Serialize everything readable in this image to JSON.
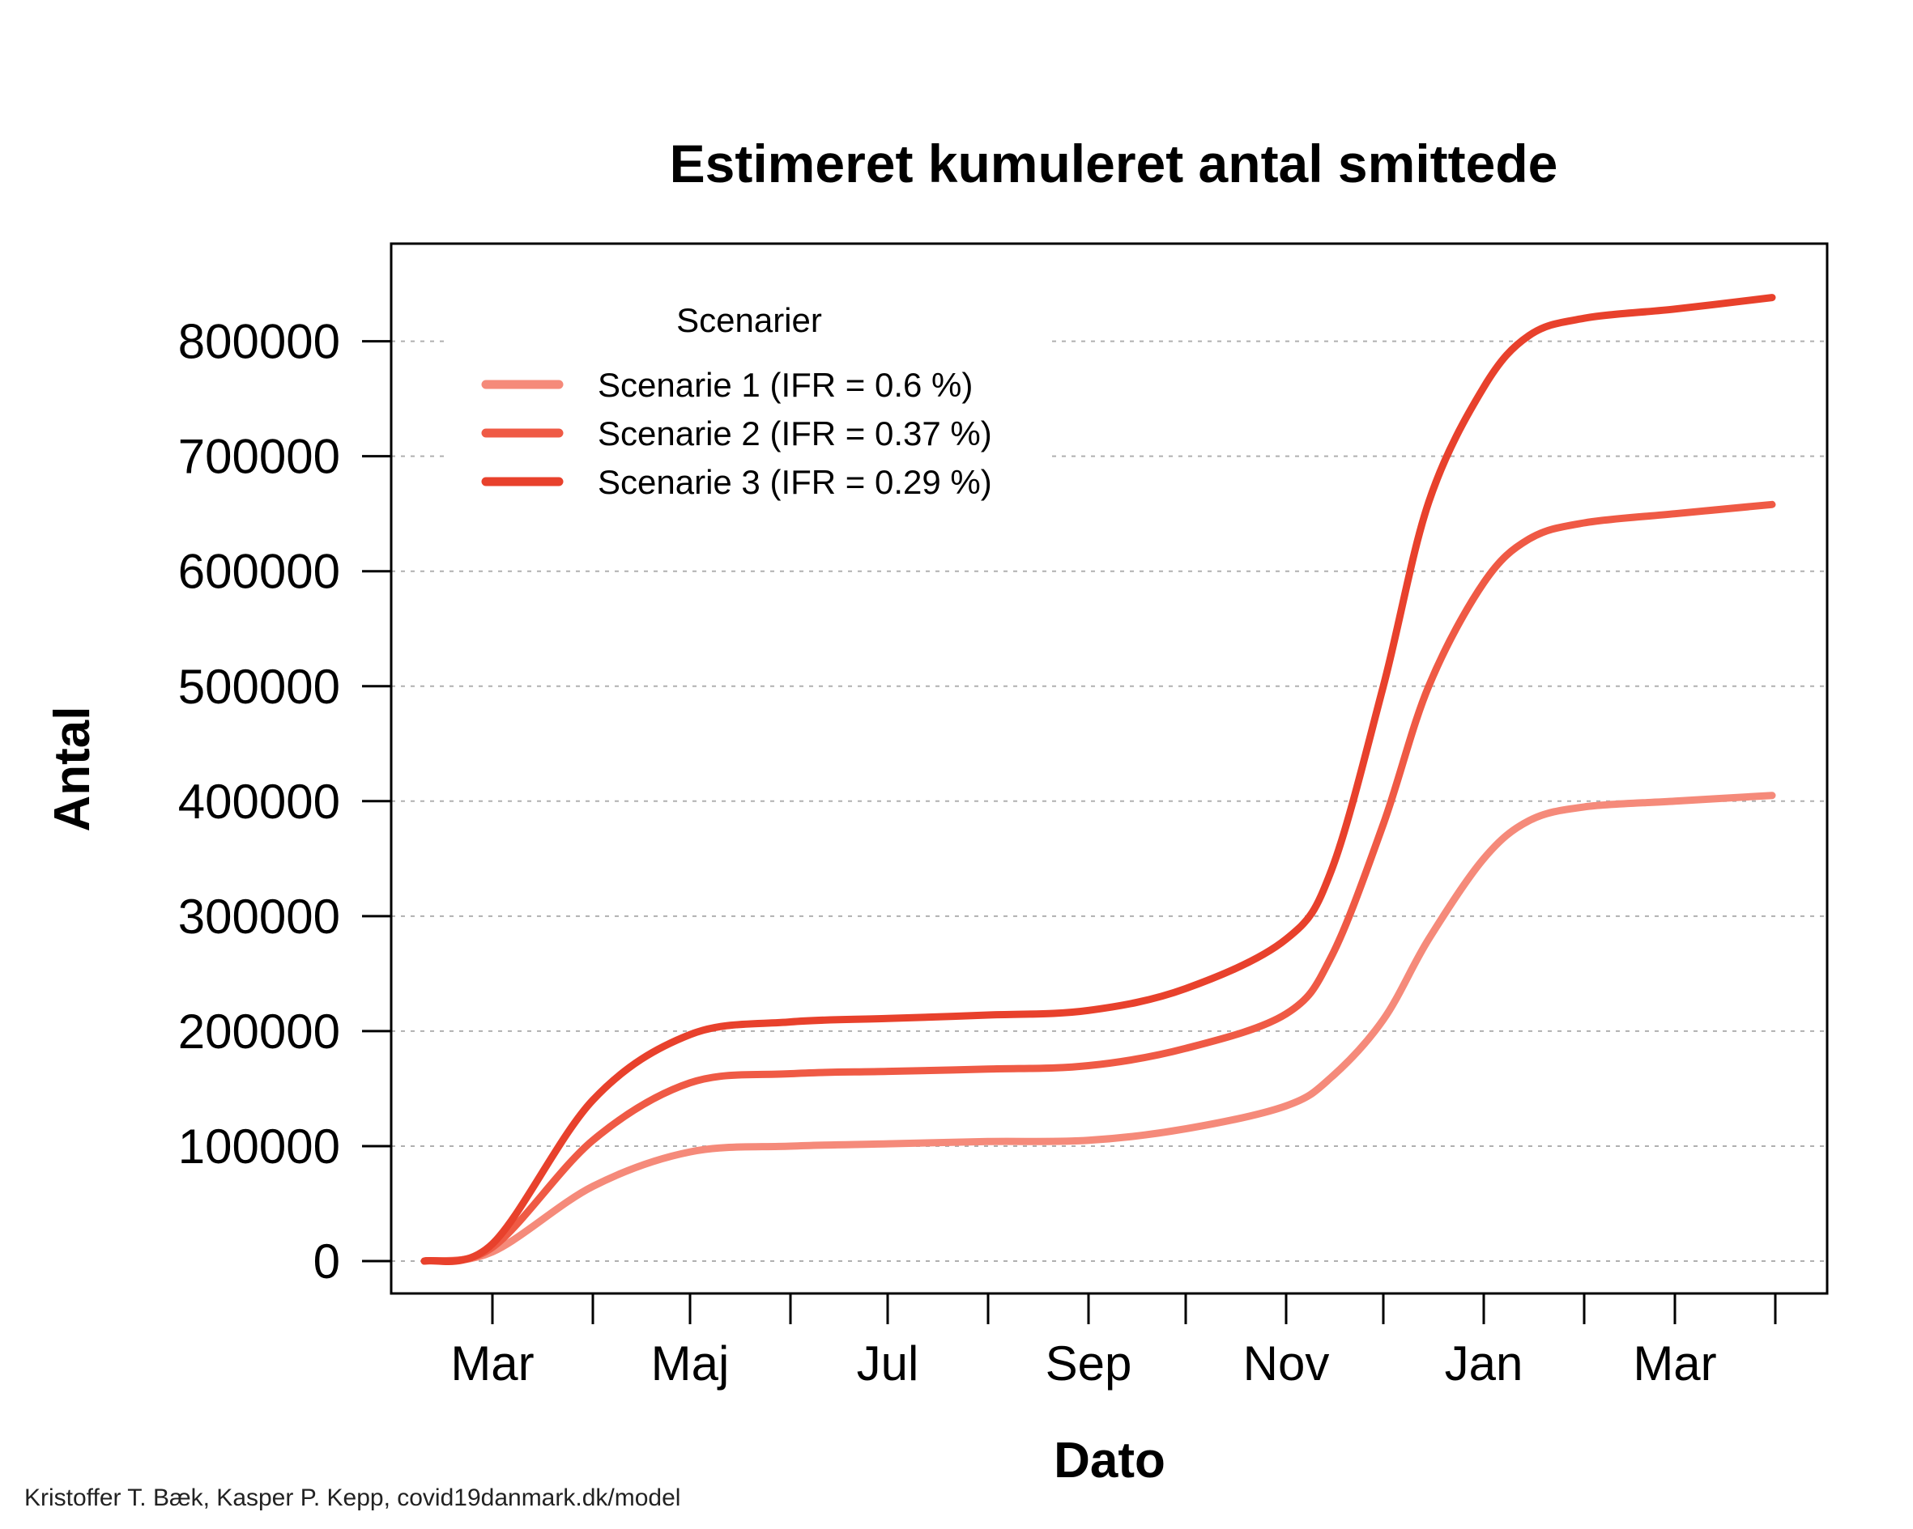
{
  "chart_data": {
    "type": "line",
    "title": "Estimeret kumuleret antal smittede",
    "xlabel": "Dato",
    "ylabel": "Antal",
    "x_ticks": [
      "Mar",
      "Maj",
      "Jul",
      "Sep",
      "Nov",
      "Jan",
      "Mar"
    ],
    "y_ticks": [
      0,
      100000,
      200000,
      300000,
      400000,
      500000,
      600000,
      700000,
      800000
    ],
    "ylim": [
      -30000,
      890000
    ],
    "grid": "horizontal dashed",
    "legend": {
      "title": "Scenarier",
      "placement": "top-left"
    },
    "x": [
      "2020-02-09",
      "2020-03-01",
      "2020-04-01",
      "2020-05-01",
      "2020-06-01",
      "2020-07-01",
      "2020-08-01",
      "2020-09-01",
      "2020-10-01",
      "2020-11-01",
      "2020-11-15",
      "2020-12-01",
      "2020-12-15",
      "2021-01-01",
      "2021-01-15",
      "2021-02-01",
      "2021-03-01",
      "2021-03-31"
    ],
    "series": [
      {
        "name": "Scenarie 1 (IFR = 0.6 %)",
        "color": "#f58a7a",
        "values": [
          0,
          8000,
          65000,
          95000,
          100000,
          102000,
          104000,
          105000,
          115000,
          135000,
          160000,
          210000,
          280000,
          350000,
          383000,
          395000,
          400000,
          405000
        ]
      },
      {
        "name": "Scenarie 2 (IFR = 0.37 %)",
        "color": "#ef5a45",
        "values": [
          0,
          12000,
          105000,
          155000,
          163000,
          165000,
          167000,
          170000,
          185000,
          215000,
          265000,
          380000,
          500000,
          590000,
          628000,
          642000,
          650000,
          658000
        ]
      },
      {
        "name": "Scenarie 3 (IFR = 0.29 %)",
        "color": "#e8412c",
        "values": [
          0,
          15000,
          140000,
          197000,
          208000,
          211000,
          214000,
          218000,
          237000,
          280000,
          340000,
          500000,
          660000,
          760000,
          805000,
          820000,
          828000,
          838000
        ]
      }
    ]
  },
  "credit": "Kristoffer T. Bæk, Kasper P. Kepp, covid19danmark.dk/model"
}
